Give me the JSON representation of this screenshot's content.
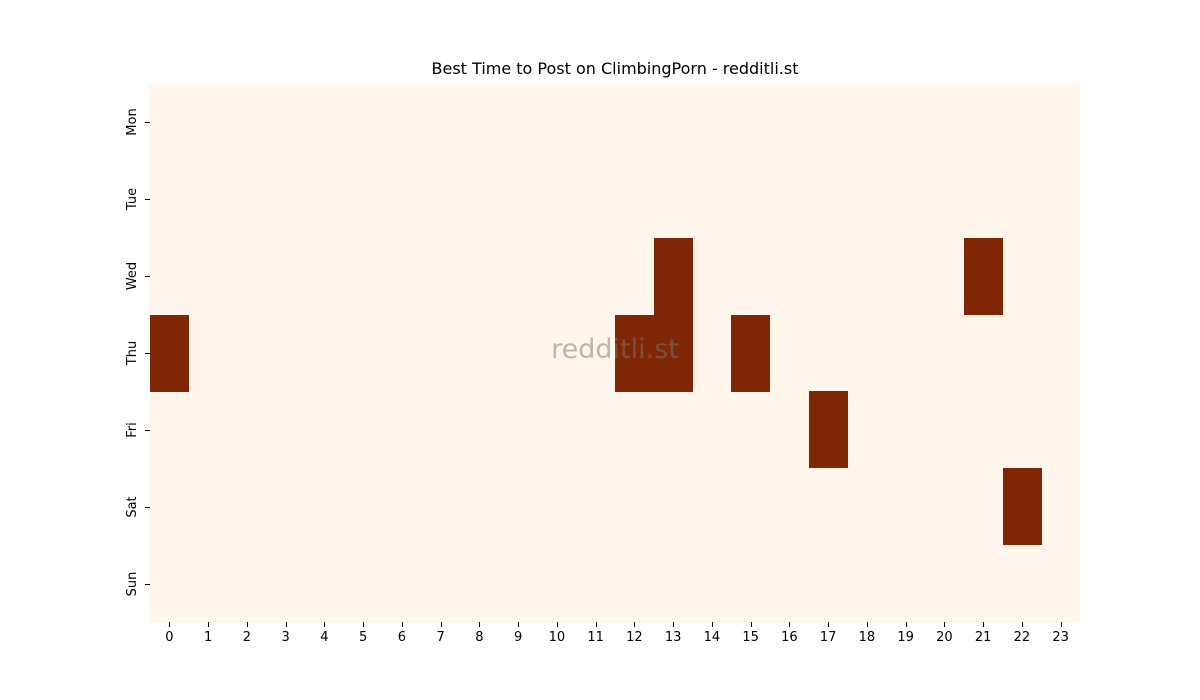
{
  "chart_data": {
    "type": "heatmap",
    "title": "Best Time to Post on ClimbingPorn - redditli.st",
    "xlabel": "",
    "ylabel": "",
    "x_categories": [
      "0",
      "1",
      "2",
      "3",
      "4",
      "5",
      "6",
      "7",
      "8",
      "9",
      "10",
      "11",
      "12",
      "13",
      "14",
      "15",
      "16",
      "17",
      "18",
      "19",
      "20",
      "21",
      "22",
      "23"
    ],
    "y_categories": [
      "Mon",
      "Tue",
      "Wed",
      "Thu",
      "Fri",
      "Sat",
      "Sun"
    ],
    "values": [
      [
        0,
        0,
        0,
        0,
        0,
        0,
        0,
        0,
        0,
        0,
        0,
        0,
        0,
        0,
        0,
        0,
        0,
        0,
        0,
        0,
        0,
        0,
        0,
        0
      ],
      [
        0,
        0,
        0,
        0,
        0,
        0,
        0,
        0,
        0,
        0,
        0,
        0,
        0,
        0,
        0,
        0,
        0,
        0,
        0,
        0,
        0,
        0,
        0,
        0
      ],
      [
        0,
        0,
        0,
        0,
        0,
        0,
        0,
        0,
        0,
        0,
        0,
        0,
        0,
        1,
        0,
        0,
        0,
        0,
        0,
        0,
        0,
        1,
        0,
        0
      ],
      [
        1,
        0,
        0,
        0,
        0,
        0,
        0,
        0,
        0,
        0,
        0,
        0,
        1,
        1,
        0,
        1,
        0,
        0,
        0,
        0,
        0,
        0,
        0,
        0
      ],
      [
        0,
        0,
        0,
        0,
        0,
        0,
        0,
        0,
        0,
        0,
        0,
        0,
        0,
        0,
        0,
        0,
        0,
        1,
        0,
        0,
        0,
        0,
        0,
        0
      ],
      [
        0,
        0,
        0,
        0,
        0,
        0,
        0,
        0,
        0,
        0,
        0,
        0,
        0,
        0,
        0,
        0,
        0,
        0,
        0,
        0,
        0,
        0,
        1,
        0
      ],
      [
        0,
        0,
        0,
        0,
        0,
        0,
        0,
        0,
        0,
        0,
        0,
        0,
        0,
        0,
        0,
        0,
        0,
        0,
        0,
        0,
        0,
        0,
        0,
        0
      ]
    ],
    "colormap": {
      "low": "#fff5eb",
      "high": "#7f2704"
    },
    "grid": false,
    "legend": "none",
    "watermark": "redditli.st"
  }
}
